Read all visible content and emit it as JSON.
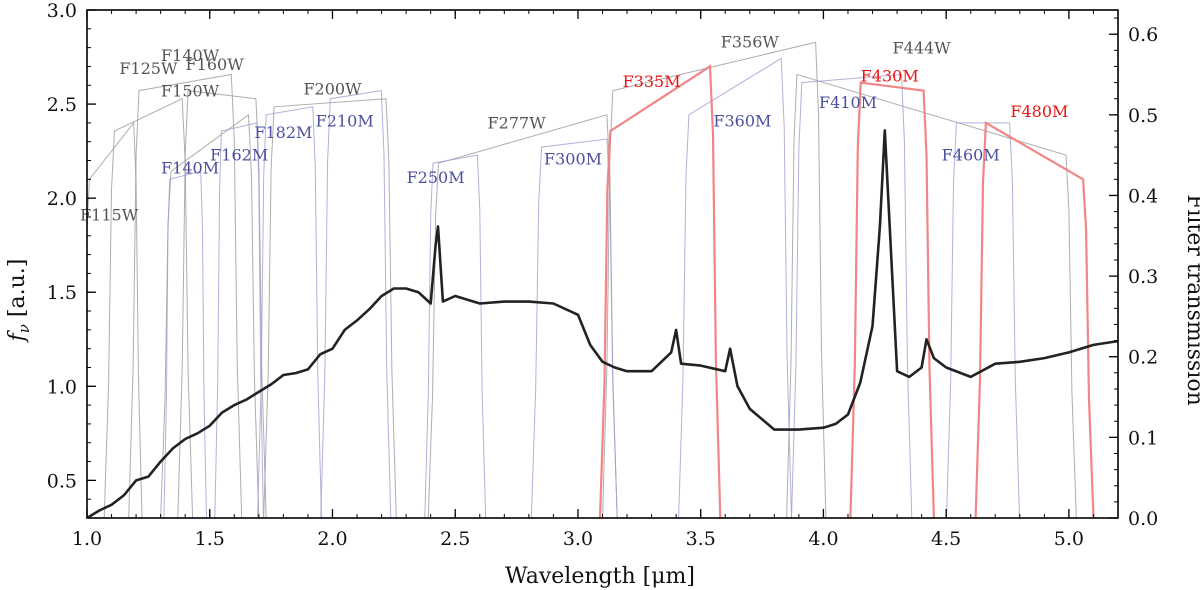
{
  "chart_data": {
    "type": "line",
    "xlabel": "Wavelength [μm]",
    "ylabel": "fν [a.u.]",
    "ylabel_main": "f",
    "ylabel_sub": "ν",
    "ylabel_unit": " [a.u.]",
    "y2label": "Filter transmission",
    "xlim": [
      1.0,
      5.2
    ],
    "ylim": [
      0.3,
      3.0
    ],
    "y2lim": [
      0.0,
      0.63
    ],
    "x_ticks": [
      "1.0",
      "1.5",
      "2.0",
      "2.5",
      "3.0",
      "3.5",
      "4.0",
      "4.5",
      "5.0"
    ],
    "y_ticks": [
      "0.5",
      "1.0",
      "1.5",
      "2.0",
      "2.5",
      "3.0"
    ],
    "y2_ticks": [
      "0.0",
      "0.1",
      "0.2",
      "0.3",
      "0.4",
      "0.5",
      "0.6"
    ],
    "colors": {
      "spectrum": "#222222",
      "wide": "#9a9a9a",
      "medium": "#9b9fd2",
      "highlight": "#f08080",
      "wide_label": "#555555",
      "medium_label": "#4a4fa0",
      "highlight_label": "#ee1111"
    },
    "series": [
      {
        "kind": "spectrum",
        "x": [
          1.0,
          1.05,
          1.1,
          1.15,
          1.2,
          1.25,
          1.3,
          1.35,
          1.4,
          1.45,
          1.5,
          1.55,
          1.6,
          1.65,
          1.7,
          1.75,
          1.8,
          1.85,
          1.9,
          1.95,
          2.0,
          2.05,
          2.1,
          2.15,
          2.2,
          2.25,
          2.3,
          2.35,
          2.4,
          2.42,
          2.43,
          2.45,
          2.5,
          2.55,
          2.6,
          2.7,
          2.8,
          2.9,
          3.0,
          3.05,
          3.1,
          3.15,
          3.2,
          3.3,
          3.38,
          3.4,
          3.42,
          3.5,
          3.6,
          3.62,
          3.65,
          3.7,
          3.8,
          3.9,
          4.0,
          4.05,
          4.1,
          4.15,
          4.2,
          4.23,
          4.25,
          4.27,
          4.3,
          4.35,
          4.4,
          4.42,
          4.45,
          4.5,
          4.6,
          4.7,
          4.8,
          4.9,
          5.0,
          5.1,
          5.2
        ],
        "y": [
          0.3,
          0.34,
          0.37,
          0.42,
          0.5,
          0.52,
          0.6,
          0.67,
          0.72,
          0.75,
          0.79,
          0.86,
          0.9,
          0.93,
          0.97,
          1.01,
          1.06,
          1.07,
          1.09,
          1.17,
          1.2,
          1.3,
          1.35,
          1.41,
          1.48,
          1.52,
          1.52,
          1.5,
          1.44,
          1.75,
          1.85,
          1.45,
          1.48,
          1.46,
          1.44,
          1.45,
          1.45,
          1.44,
          1.38,
          1.22,
          1.13,
          1.1,
          1.08,
          1.08,
          1.18,
          1.3,
          1.12,
          1.11,
          1.08,
          1.2,
          1.0,
          0.88,
          0.77,
          0.77,
          0.78,
          0.8,
          0.85,
          1.02,
          1.32,
          1.85,
          2.36,
          1.85,
          1.08,
          1.05,
          1.1,
          1.25,
          1.15,
          1.1,
          1.05,
          1.12,
          1.13,
          1.15,
          1.18,
          1.22,
          1.24
        ]
      }
    ],
    "filters": [
      {
        "name": "F115W",
        "kind": "wide",
        "lo": 1.0,
        "hi": 1.2,
        "t_start": 0.42,
        "t_end": 0.49
      },
      {
        "name": "F125W",
        "kind": "wide",
        "lo": 1.1,
        "hi": 1.4,
        "t_start": 0.48,
        "t_end": 0.52
      },
      {
        "name": "F140W",
        "kind": "wide",
        "lo": 1.2,
        "hi": 1.6,
        "t_start": 0.53,
        "t_end": 0.55
      },
      {
        "name": "F160W",
        "kind": "wide",
        "lo": 1.4,
        "hi": 1.7,
        "t_start": 0.53,
        "t_end": 0.52
      },
      {
        "name": "F150W",
        "kind": "wide",
        "lo": 1.33,
        "hi": 1.67,
        "t_start": 0.43,
        "t_end": 0.5
      },
      {
        "name": "F200W",
        "kind": "wide",
        "lo": 1.75,
        "hi": 2.23,
        "t_start": 0.51,
        "t_end": 0.52
      },
      {
        "name": "F277W",
        "kind": "wide",
        "lo": 2.42,
        "hi": 3.13,
        "t_start": 0.44,
        "t_end": 0.5
      },
      {
        "name": "F356W",
        "kind": "wide",
        "lo": 3.13,
        "hi": 3.98,
        "t_start": 0.53,
        "t_end": 0.59
      },
      {
        "name": "F444W",
        "kind": "wide",
        "lo": 3.88,
        "hi": 5.0,
        "t_start": 0.55,
        "t_end": 0.45
      },
      {
        "name": "F140M",
        "kind": "medium",
        "lo": 1.33,
        "hi": 1.47,
        "t_start": 0.42,
        "t_end": 0.43
      },
      {
        "name": "F162M",
        "kind": "medium",
        "lo": 1.54,
        "hi": 1.7,
        "t_start": 0.48,
        "t_end": 0.49
      },
      {
        "name": "F182M",
        "kind": "medium",
        "lo": 1.72,
        "hi": 1.93,
        "t_start": 0.5,
        "t_end": 0.51
      },
      {
        "name": "F210M",
        "kind": "medium",
        "lo": 1.98,
        "hi": 2.21,
        "t_start": 0.52,
        "t_end": 0.53
      },
      {
        "name": "F250M",
        "kind": "medium",
        "lo": 2.4,
        "hi": 2.6,
        "t_start": 0.44,
        "t_end": 0.45
      },
      {
        "name": "F300M",
        "kind": "medium",
        "lo": 2.84,
        "hi": 3.13,
        "t_start": 0.46,
        "t_end": 0.47
      },
      {
        "name": "F360M",
        "kind": "medium",
        "lo": 3.44,
        "hi": 3.84,
        "t_start": 0.5,
        "t_end": 0.57
      },
      {
        "name": "F410M",
        "kind": "medium",
        "lo": 3.9,
        "hi": 4.33,
        "t_start": 0.54,
        "t_end": 0.55
      },
      {
        "name": "F460M",
        "kind": "medium",
        "lo": 4.53,
        "hi": 4.77,
        "t_start": 0.49,
        "t_end": 0.49
      },
      {
        "name": "F335M",
        "kind": "highlight",
        "lo": 3.12,
        "hi": 3.55,
        "t_start": 0.48,
        "t_end": 0.56
      },
      {
        "name": "F430M",
        "kind": "highlight",
        "lo": 4.14,
        "hi": 4.42,
        "t_start": 0.54,
        "t_end": 0.53
      },
      {
        "name": "F480M",
        "kind": "highlight",
        "lo": 4.65,
        "hi": 5.07,
        "t_start": 0.49,
        "t_end": 0.42
      }
    ]
  }
}
